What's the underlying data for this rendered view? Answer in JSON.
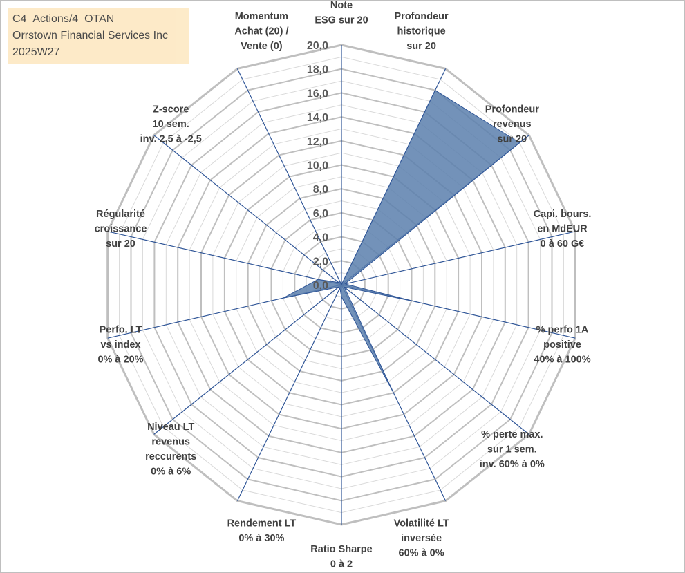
{
  "header": {
    "line1": "C4_Actions/4_OTAN",
    "line2": "Orrstown Financial Services Inc",
    "line3": "2025W27"
  },
  "colors": {
    "fill": "#5b7fad",
    "axis": "#2f5597",
    "grid_major": "#bfbfbf",
    "grid_minor": "#d9d9d9",
    "header_bg": "#fde9c4"
  },
  "chart_data": {
    "type": "radar",
    "rlim": [
      0,
      20
    ],
    "tick_labels": [
      "0,0",
      "2,0",
      "4,0",
      "6,0",
      "8,0",
      "10,0",
      "12,0",
      "14,0",
      "16,0",
      "18,0",
      "20,0"
    ],
    "axes": [
      {
        "label": [
          "Note",
          "ESG sur 20"
        ],
        "value": 0
      },
      {
        "label": [
          "Profondeur",
          "historique",
          "sur 20"
        ],
        "value": 18
      },
      {
        "label": [
          "Profondeur",
          "revenus",
          "sur 20"
        ],
        "value": 19
      },
      {
        "label": [
          "Capi. bours.",
          "en MdEUR",
          "0 à 60 G€"
        ],
        "value": 0.3
      },
      {
        "label": [
          "% perfo 1A",
          "positive",
          "40% à 100%"
        ],
        "value": 6.5
      },
      {
        "label": [
          "% perte max.",
          "sur 1 sem.",
          "inv. 60% à 0%"
        ],
        "value": 0.3
      },
      {
        "label": [
          "Volatilité LT",
          "inversée",
          "60% à 0%"
        ],
        "value": 10
      },
      {
        "label": [
          "Ratio Sharpe",
          "0 à 2"
        ],
        "value": 1.0
      },
      {
        "label": [
          "Rendement LT",
          "0% à 30%"
        ],
        "value": 0.3
      },
      {
        "label": [
          "Niveau LT",
          "revenus",
          "reccurents",
          "0% à 6%"
        ],
        "value": 0.3
      },
      {
        "label": [
          "Perfo. LT",
          "vs index",
          "0% à 20%"
        ],
        "value": 5.0
      },
      {
        "label": [
          "Régularité",
          "croissance",
          "sur 20"
        ],
        "value": 2.0
      },
      {
        "label": [
          "Z-score",
          "10 sem.",
          "inv. 2,5 à -2,5"
        ],
        "value": 0.3
      },
      {
        "label": [
          "Momentum",
          "Achat (20) /",
          "Vente (0)"
        ],
        "value": 0.3
      }
    ]
  }
}
